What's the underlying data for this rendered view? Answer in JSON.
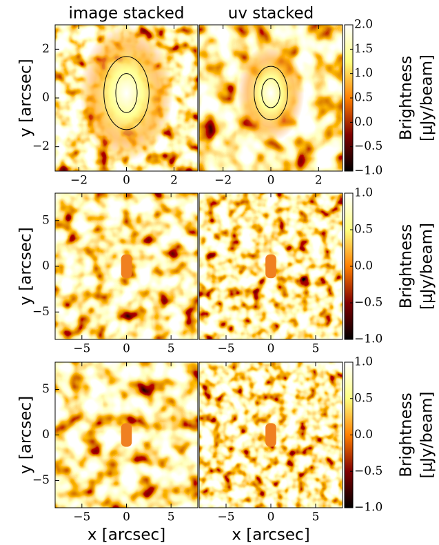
{
  "chart_data": [
    {
      "type": "heatmap",
      "title": "image stacked",
      "ylabel": "y [arcsec]",
      "colormap": "afmhot",
      "xlim": [
        -3,
        3
      ],
      "ylim": [
        -3,
        3
      ],
      "xticks": [
        {
          "value": -2,
          "label": "−2"
        },
        0,
        2
      ],
      "yticks": [
        {
          "value": -2,
          "label": "−2"
        },
        0,
        2
      ]
    },
    {
      "type": "heatmap",
      "title": "uv stacked",
      "colormap": "afmhot",
      "xlim": [
        -3,
        3
      ],
      "ylim": [
        -3,
        3
      ],
      "xticks": [
        {
          "value": -2,
          "label": "−2"
        },
        0,
        2
      ],
      "colorbar": {
        "label": [
          "Brightness",
          "[μJy/beam]"
        ],
        "lim": [
          -1,
          2
        ],
        "ticks": [
          {
            "value": -1,
            "label": "−1.0"
          },
          {
            "value": -0.5,
            "label": "−0.5"
          },
          {
            "value": 0,
            "label": "0.0"
          },
          {
            "value": 0.5,
            "label": "0.5"
          },
          {
            "value": 1,
            "label": "1.0"
          },
          {
            "value": 1.5,
            "label": "1.5"
          },
          {
            "value": 2,
            "label": "2.0"
          }
        ]
      }
    },
    {
      "type": "heatmap",
      "ylabel": "y [arcsec]",
      "colormap": "afmhot",
      "xlim": [
        -8,
        8
      ],
      "ylim": [
        -8,
        8
      ],
      "xticks": [
        {
          "value": -5,
          "label": "−5"
        },
        0,
        5
      ],
      "yticks": [
        {
          "value": -5,
          "label": "−5"
        },
        0,
        5
      ]
    },
    {
      "type": "heatmap",
      "colormap": "afmhot",
      "xlim": [
        -8,
        8
      ],
      "ylim": [
        -8,
        8
      ],
      "xticks": [
        {
          "value": -5,
          "label": "−5"
        },
        0,
        5
      ],
      "colorbar": {
        "label": [
          "Brightness",
          "[μJy/beam]"
        ],
        "lim": [
          -1,
          1
        ],
        "ticks": [
          {
            "value": -1,
            "label": "−1.0"
          },
          {
            "value": -0.5,
            "label": "−0.5"
          },
          {
            "value": 0,
            "label": "0.0"
          },
          {
            "value": 0.5,
            "label": "0.5"
          },
          {
            "value": 1,
            "label": "1.0"
          }
        ]
      }
    },
    {
      "type": "heatmap",
      "ylabel": "y [arcsec]",
      "xlabel": "x [arcsec]",
      "colormap": "afmhot",
      "xlim": [
        -8,
        8
      ],
      "ylim": [
        -8,
        8
      ],
      "xticks": [
        {
          "value": -5,
          "label": "−5"
        },
        0,
        5
      ],
      "yticks": [
        {
          "value": -5,
          "label": "−5"
        },
        0,
        5
      ]
    },
    {
      "type": "heatmap",
      "xlabel": "x [arcsec]",
      "colormap": "afmhot",
      "xlim": [
        -8,
        8
      ],
      "ylim": [
        -8,
        8
      ],
      "xticks": [
        {
          "value": -5,
          "label": "−5"
        },
        0,
        5
      ],
      "colorbar": {
        "label": [
          "Brightness",
          "[μJy/beam]"
        ],
        "lim": [
          -1,
          1
        ],
        "ticks": [
          {
            "value": -1,
            "label": "−1.0"
          },
          {
            "value": -0.5,
            "label": "−0.5"
          },
          {
            "value": 0,
            "label": "0.0"
          },
          {
            "value": 0.5,
            "label": "0.5"
          },
          {
            "value": 1,
            "label": "1.0"
          }
        ]
      }
    }
  ]
}
